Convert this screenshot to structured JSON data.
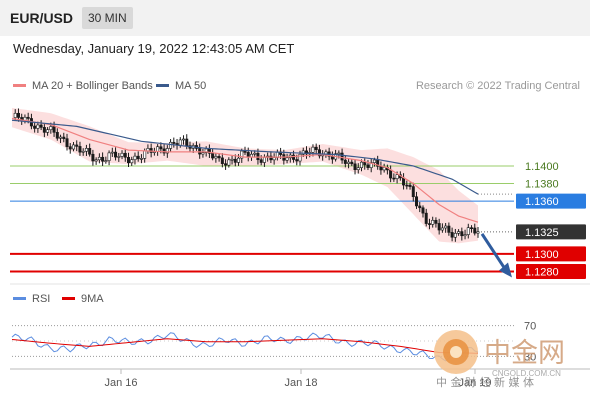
{
  "header": {
    "symbol": "EUR/USD",
    "timeframe": "30 MIN"
  },
  "datetime": "Wednesday, January 19, 2022 12:43:05 AM CET",
  "legend": {
    "ma20": {
      "label": "MA 20 + Bollinger Bands",
      "color": "#f08080"
    },
    "ma50": {
      "label": "MA 50",
      "color": "#3a5a8c"
    }
  },
  "credit": "Research © 2022 Trading Central",
  "price_levels": [
    {
      "label": "1.1400",
      "kind": "resistance-line",
      "color": "#9acd6a"
    },
    {
      "label": "1.1380",
      "kind": "resistance-line",
      "color": "#9acd6a"
    },
    {
      "label": "1.1360",
      "kind": "pivot",
      "color": "#2a7de1"
    },
    {
      "label": "1.1325",
      "kind": "last-price",
      "color": "#333333"
    },
    {
      "label": "1.1300",
      "kind": "support",
      "color": "#e00000"
    },
    {
      "label": "1.1280",
      "kind": "support",
      "color": "#e00000"
    }
  ],
  "rsi_legend": {
    "rsi": {
      "label": "RSI",
      "color": "#5b8de0"
    },
    "ma9": {
      "label": "9MA",
      "color": "#e00000"
    }
  },
  "rsi_levels": {
    "upper": "70",
    "lower": "30"
  },
  "x_axis": {
    "ticks": [
      "Jan 16",
      "Jan 18",
      "Jan 19"
    ]
  },
  "watermark": {
    "title": "中金网",
    "url": "CNGOLD.COM.CN",
    "subtitle": "中 金 财 经 新 媒 体"
  },
  "chart_data": {
    "type": "candlestick",
    "symbol": "EUR/USD",
    "timeframe": "30 MIN",
    "x_ticks": [
      "Jan 16",
      "Jan 18",
      "Jan 19"
    ],
    "ylim": [
      1.1268,
      1.1475
    ],
    "close_path": [
      [
        0,
        1.1455
      ],
      [
        6,
        1.145
      ],
      [
        12,
        1.1438
      ],
      [
        18,
        1.1425
      ],
      [
        22,
        1.1415
      ],
      [
        26,
        1.1408
      ],
      [
        30,
        1.1412
      ],
      [
        34,
        1.1409
      ],
      [
        38,
        1.141
      ],
      [
        42,
        1.1414
      ],
      [
        46,
        1.142
      ],
      [
        50,
        1.1426
      ],
      [
        54,
        1.1424
      ],
      [
        58,
        1.142
      ],
      [
        62,
        1.141
      ],
      [
        64,
        1.1404
      ],
      [
        68,
        1.1408
      ],
      [
        72,
        1.1412
      ],
      [
        78,
        1.141
      ],
      [
        84,
        1.1409
      ],
      [
        88,
        1.1412
      ],
      [
        92,
        1.1415
      ],
      [
        96,
        1.1416
      ],
      [
        100,
        1.1412
      ],
      [
        104,
        1.14
      ],
      [
        108,
        1.1403
      ],
      [
        112,
        1.14
      ],
      [
        116,
        1.1395
      ],
      [
        120,
        1.1385
      ],
      [
        124,
        1.1365
      ],
      [
        128,
        1.134
      ],
      [
        132,
        1.1328
      ],
      [
        136,
        1.1325
      ],
      [
        140,
        1.1324
      ],
      [
        144,
        1.1325
      ]
    ],
    "ma20": [
      [
        0,
        1.1454
      ],
      [
        12,
        1.1447
      ],
      [
        24,
        1.143
      ],
      [
        36,
        1.1418
      ],
      [
        48,
        1.1416
      ],
      [
        60,
        1.1416
      ],
      [
        72,
        1.141
      ],
      [
        84,
        1.141
      ],
      [
        96,
        1.1413
      ],
      [
        108,
        1.1406
      ],
      [
        116,
        1.1398
      ],
      [
        124,
        1.138
      ],
      [
        132,
        1.1356
      ],
      [
        138,
        1.1343
      ],
      [
        144,
        1.1336
      ]
    ],
    "ma50": [
      [
        0,
        1.1452
      ],
      [
        20,
        1.1445
      ],
      [
        40,
        1.1428
      ],
      [
        60,
        1.142
      ],
      [
        80,
        1.1416
      ],
      [
        100,
        1.1413
      ],
      [
        112,
        1.1408
      ],
      [
        124,
        1.14
      ],
      [
        136,
        1.1385
      ],
      [
        144,
        1.1368
      ]
    ],
    "bollinger_upper": [
      [
        0,
        1.1466
      ],
      [
        12,
        1.146
      ],
      [
        24,
        1.1445
      ],
      [
        36,
        1.1427
      ],
      [
        48,
        1.1426
      ],
      [
        60,
        1.1428
      ],
      [
        72,
        1.142
      ],
      [
        84,
        1.1418
      ],
      [
        96,
        1.1425
      ],
      [
        108,
        1.1418
      ],
      [
        116,
        1.142
      ],
      [
        124,
        1.141
      ],
      [
        132,
        1.1395
      ],
      [
        138,
        1.1372
      ],
      [
        144,
        1.1355
      ]
    ],
    "bollinger_lower": [
      [
        0,
        1.1444
      ],
      [
        12,
        1.143
      ],
      [
        24,
        1.1405
      ],
      [
        36,
        1.1402
      ],
      [
        48,
        1.1406
      ],
      [
        60,
        1.14
      ],
      [
        72,
        1.14
      ],
      [
        84,
        1.1402
      ],
      [
        96,
        1.1405
      ],
      [
        108,
        1.139
      ],
      [
        116,
        1.1376
      ],
      [
        124,
        1.1345
      ],
      [
        132,
        1.1314
      ],
      [
        138,
        1.1312
      ],
      [
        144,
        1.1315
      ]
    ],
    "levels": [
      1.14,
      1.138,
      1.136,
      1.1325,
      1.13,
      1.128
    ],
    "projection": {
      "from": 1.1325,
      "to": 1.128
    },
    "rsi": {
      "ylim": [
        20,
        80
      ],
      "levels": [
        70,
        30
      ],
      "rsi": [
        [
          0,
          55
        ],
        [
          6,
          50
        ],
        [
          12,
          42
        ],
        [
          18,
          38
        ],
        [
          24,
          45
        ],
        [
          30,
          52
        ],
        [
          36,
          47
        ],
        [
          42,
          52
        ],
        [
          48,
          57
        ],
        [
          54,
          50
        ],
        [
          60,
          45
        ],
        [
          66,
          50
        ],
        [
          72,
          48
        ],
        [
          78,
          52
        ],
        [
          84,
          50
        ],
        [
          90,
          56
        ],
        [
          96,
          55
        ],
        [
          102,
          50
        ],
        [
          108,
          47
        ],
        [
          114,
          44
        ],
        [
          120,
          40
        ],
        [
          126,
          32
        ],
        [
          132,
          28
        ],
        [
          138,
          34
        ],
        [
          144,
          38
        ]
      ],
      "ma9": [
        [
          0,
          52
        ],
        [
          12,
          47
        ],
        [
          24,
          43
        ],
        [
          36,
          48
        ],
        [
          48,
          53
        ],
        [
          60,
          49
        ],
        [
          72,
          49
        ],
        [
          84,
          51
        ],
        [
          96,
          53
        ],
        [
          108,
          49
        ],
        [
          120,
          43
        ],
        [
          132,
          35
        ],
        [
          144,
          34
        ]
      ]
    }
  }
}
